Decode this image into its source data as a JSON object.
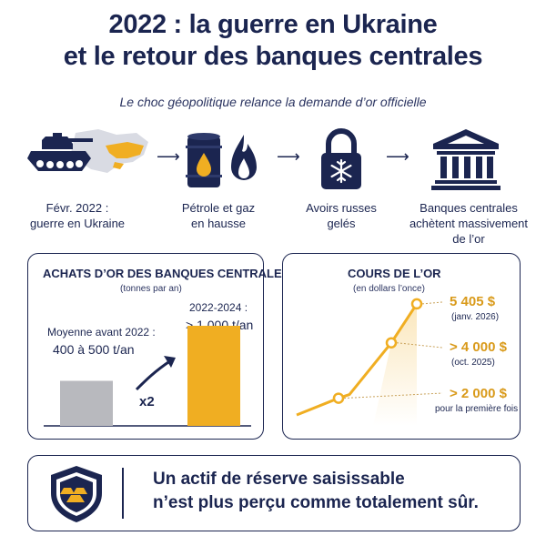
{
  "header": {
    "title_line1": "2022 : la guerre en Ukraine",
    "title_line2": "et le retour des banques centrales",
    "subtitle": "Le choc géopolitique relance la demande d’or officielle"
  },
  "flow": {
    "steps": [
      {
        "line1": "Févr. 2022 :",
        "line2": "guerre en Ukraine",
        "icon": "tank-map-icon"
      },
      {
        "line1": "Pétrole et gaz",
        "line2": "en hausse",
        "icon": "oil-gas-icon"
      },
      {
        "line1": "Avoirs russes",
        "line2": "gelés",
        "icon": "padlock-snowflake-icon"
      },
      {
        "line1": "Banques centrales",
        "line2": "achètent massivement",
        "line3": "de l’or",
        "icon": "bank-icon"
      }
    ]
  },
  "left_panel": {
    "title": "ACHATS D’OR DES BANQUES CENTRALES",
    "subtitle": "(tonnes par an)",
    "before_label": "Moyenne avant 2022 :",
    "before_value": "400 à 500 t/an",
    "after_label": "2022-2024 :",
    "after_value": "> 1 000 t/an",
    "multiplier": "x2"
  },
  "right_panel": {
    "title": "COURS DE L’OR",
    "subtitle": "(en dollars l’once)",
    "points": [
      {
        "value": "5 405 $",
        "date": "(janv. 2026)"
      },
      {
        "value": "> 4 000 $",
        "date": "(oct. 2025)"
      },
      {
        "value": "> 2 000 $",
        "date": "pour la première fois"
      }
    ]
  },
  "chart_data": [
    {
      "type": "bar",
      "categories": [
        "Moyenne avant 2022",
        "2022-2024"
      ],
      "values": [
        450,
        1000
      ],
      "title": "ACHATS D’OR DES BANQUES CENTRALES",
      "subtitle": "(tonnes par an)",
      "colors": [
        "#b8b9be",
        "#f0ae22"
      ]
    },
    {
      "type": "line",
      "x": [
        "",
        "oct. 2025",
        "janv. 2026"
      ],
      "y": [
        2000,
        4000,
        5405
      ],
      "title": "COURS DE L’OR",
      "subtitle": "(en dollars l’once)",
      "color": "#f0ae22"
    }
  ],
  "footer": {
    "line1": "Un actif de réserve saisissable",
    "line2": "n’est plus perçu comme totalement sûr."
  },
  "colors": {
    "navy": "#1b2550",
    "gold": "#f0ae22",
    "gold_text": "#d99a1a",
    "grey_bar": "#b8b9be"
  }
}
